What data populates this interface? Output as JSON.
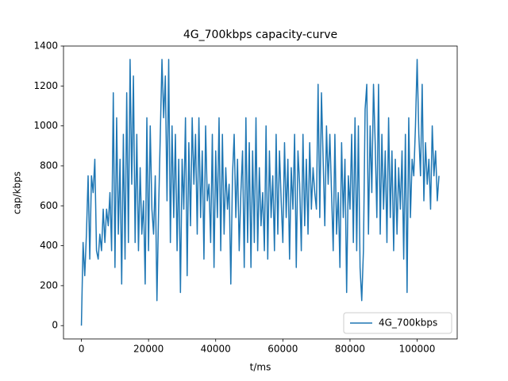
{
  "chart_data": {
    "type": "line",
    "title": "4G_700kbps capacity-curve",
    "x_label": "t/ms",
    "y_label": "cap/kbps",
    "x": [
      0,
      500,
      1000,
      1500,
      2000,
      2500,
      3000,
      3500,
      4000,
      4500,
      5000,
      5500,
      6000,
      6500,
      7000,
      7500,
      8000,
      8500,
      9000,
      9500,
      10000,
      10500,
      11000,
      11500,
      12000,
      12500,
      13000,
      13500,
      14000,
      14500,
      15000,
      15500,
      16000,
      16500,
      17000,
      17500,
      18000,
      18500,
      19000,
      19500,
      20000,
      20500,
      21000,
      21500,
      22000,
      22500,
      23000,
      23500,
      24000,
      24500,
      25000,
      25500,
      26000,
      26500,
      27000,
      27500,
      28000,
      28500,
      29000,
      29500,
      30000,
      30500,
      31000,
      31500,
      32000,
      32500,
      33000,
      33500,
      34000,
      34500,
      35000,
      35500,
      36000,
      36500,
      37000,
      37500,
      38000,
      38500,
      39000,
      39500,
      40000,
      40500,
      41000,
      41500,
      42000,
      42500,
      43000,
      43500,
      44000,
      44500,
      45000,
      45500,
      46000,
      46500,
      47000,
      47500,
      48000,
      48500,
      49000,
      49500,
      50000,
      50500,
      51000,
      51500,
      52000,
      52500,
      53000,
      53500,
      54000,
      54500,
      55000,
      55500,
      56000,
      56500,
      57000,
      57500,
      58000,
      58500,
      59000,
      59500,
      60000,
      60500,
      61000,
      61500,
      62000,
      62500,
      63000,
      63500,
      64000,
      64500,
      65000,
      65500,
      66000,
      66500,
      67000,
      67500,
      68000,
      68500,
      69000,
      69500,
      70000,
      70500,
      71000,
      71500,
      72000,
      72500,
      73000,
      73500,
      74000,
      74500,
      75000,
      75500,
      76000,
      76500,
      77000,
      77500,
      78000,
      78500,
      79000,
      79500,
      80000,
      80500,
      81000,
      81500,
      82000,
      82500,
      83000,
      83500,
      84000,
      84500,
      85000,
      85500,
      86000,
      86500,
      87000,
      87500,
      88000,
      88500,
      89000,
      89500,
      90000,
      90500,
      91000,
      91500,
      92000,
      92500,
      93000,
      93500,
      94000,
      94500,
      95000,
      95500,
      96000,
      96500,
      97000,
      97500,
      98000,
      98500,
      99000,
      99500,
      100000,
      100500,
      101000,
      101500,
      102000,
      102500,
      103000,
      103500,
      104000,
      104500,
      105000,
      105500,
      106000,
      106500
    ],
    "series": [
      {
        "name": "4G_700kbps",
        "color": "#1f77b4",
        "values": [
          0,
          416,
          250,
          458,
          750,
          333,
          750,
          666,
          833,
          375,
          333,
          458,
          375,
          583,
          416,
          583,
          500,
          666,
          375,
          1166,
          291,
          1041,
          458,
          833,
          208,
          958,
          333,
          1166,
          416,
          1333,
          708,
          1250,
          416,
          958,
          375,
          791,
          458,
          625,
          208,
          1041,
          375,
          1000,
          583,
          458,
          750,
          125,
          583,
          958,
          1333,
          1041,
          1250,
          625,
          1333,
          416,
          1000,
          541,
          958,
          375,
          833,
          166,
          833,
          583,
          1041,
          250,
          916,
          500,
          1041,
          708,
          958,
          458,
          1041,
          541,
          875,
          333,
          1000,
          625,
          708,
          416,
          958,
          291,
          875,
          541,
          1041,
          375,
          958,
          458,
          791,
          583,
          708,
          208,
          750,
          958,
          541,
          833,
          375,
          666,
          875,
          291,
          1041,
          416,
          916,
          291,
          875,
          416,
          1041,
          375,
          791,
          500,
          666,
          375,
          1000,
          333,
          875,
          541,
          750,
          375,
          958,
          458,
          875,
          625,
          416,
          916,
          541,
          833,
          333,
          791,
          583,
          958,
          291,
          875,
          708,
          375,
          958,
          500,
          833,
          458,
          916,
          583,
          791,
          666,
          583,
          1208,
          541,
          1166,
          833,
          500,
          1000,
          708,
          958,
          666,
          375,
          958,
          458,
          666,
          291,
          916,
          541,
          833,
          166,
          750,
          583,
          958,
          416,
          1041,
          375,
          1000,
          291,
          125,
          375,
          1083,
          1208,
          458,
          1000,
          666,
          1208,
          916,
          541,
          1208,
          458,
          958,
          583,
          875,
          416,
          1041,
          541,
          875,
          375,
          833,
          458,
          791,
          583,
          875,
          333,
          958,
          166,
          1041,
          541,
          833,
          750,
          1000,
          1333,
          958,
          750,
          1208,
          625,
          916,
          708,
          833,
          583,
          1000,
          750,
          875,
          625,
          750
        ]
      }
    ],
    "xlim": [
      -5330,
      111930
    ],
    "ylim": [
      -66.7,
      1400
    ],
    "xticks": [
      0,
      20000,
      40000,
      60000,
      80000,
      100000
    ],
    "yticks": [
      0,
      200,
      400,
      600,
      800,
      1000,
      1200,
      1400
    ],
    "legend": "lower right"
  }
}
